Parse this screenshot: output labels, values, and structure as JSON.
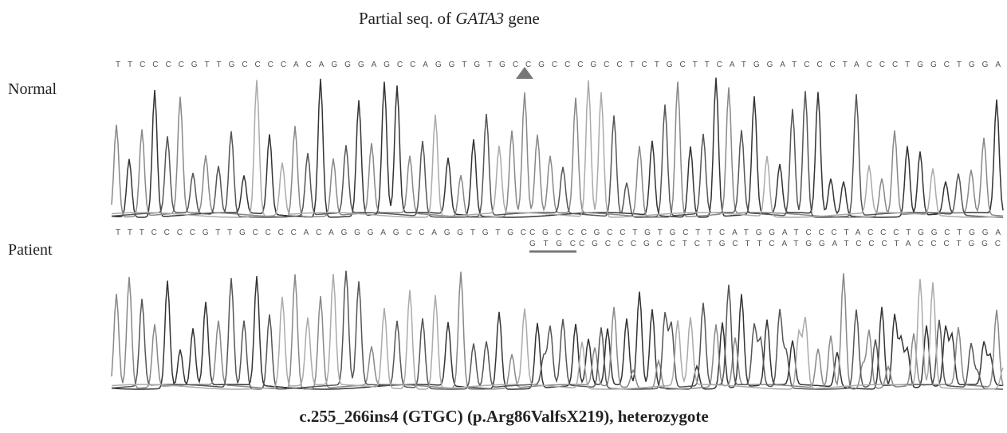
{
  "title": {
    "prefix": "Partial seq. of",
    "gene": "GATA3",
    "suffix": "gene"
  },
  "panels": [
    {
      "label": "Normal",
      "sequence": "TTCCCCGTTGCCCCACAGGGAGCCAGGTGTGCCGCCCGCCTCTGCTTCATGGATCCCTACCCTGGCTGGA"
    },
    {
      "label": "Patient",
      "sequence_common": "TTTCCCCGTTGCCCCACAGGGAGCCAGGTGTGC",
      "sequence_allele1": "CGCCCGCCTGTGCTTCATGGATCCCTACCCTGGCTGGA",
      "sequence_insert": "GTGC",
      "sequence_allele2": "CGCCCGCCTCTGCTTCATGGATCCCTACCCTGGC"
    }
  ],
  "caption": "c.255_266ins4 (GTGC) (p.Arg86ValfsX219), heterozygote"
}
